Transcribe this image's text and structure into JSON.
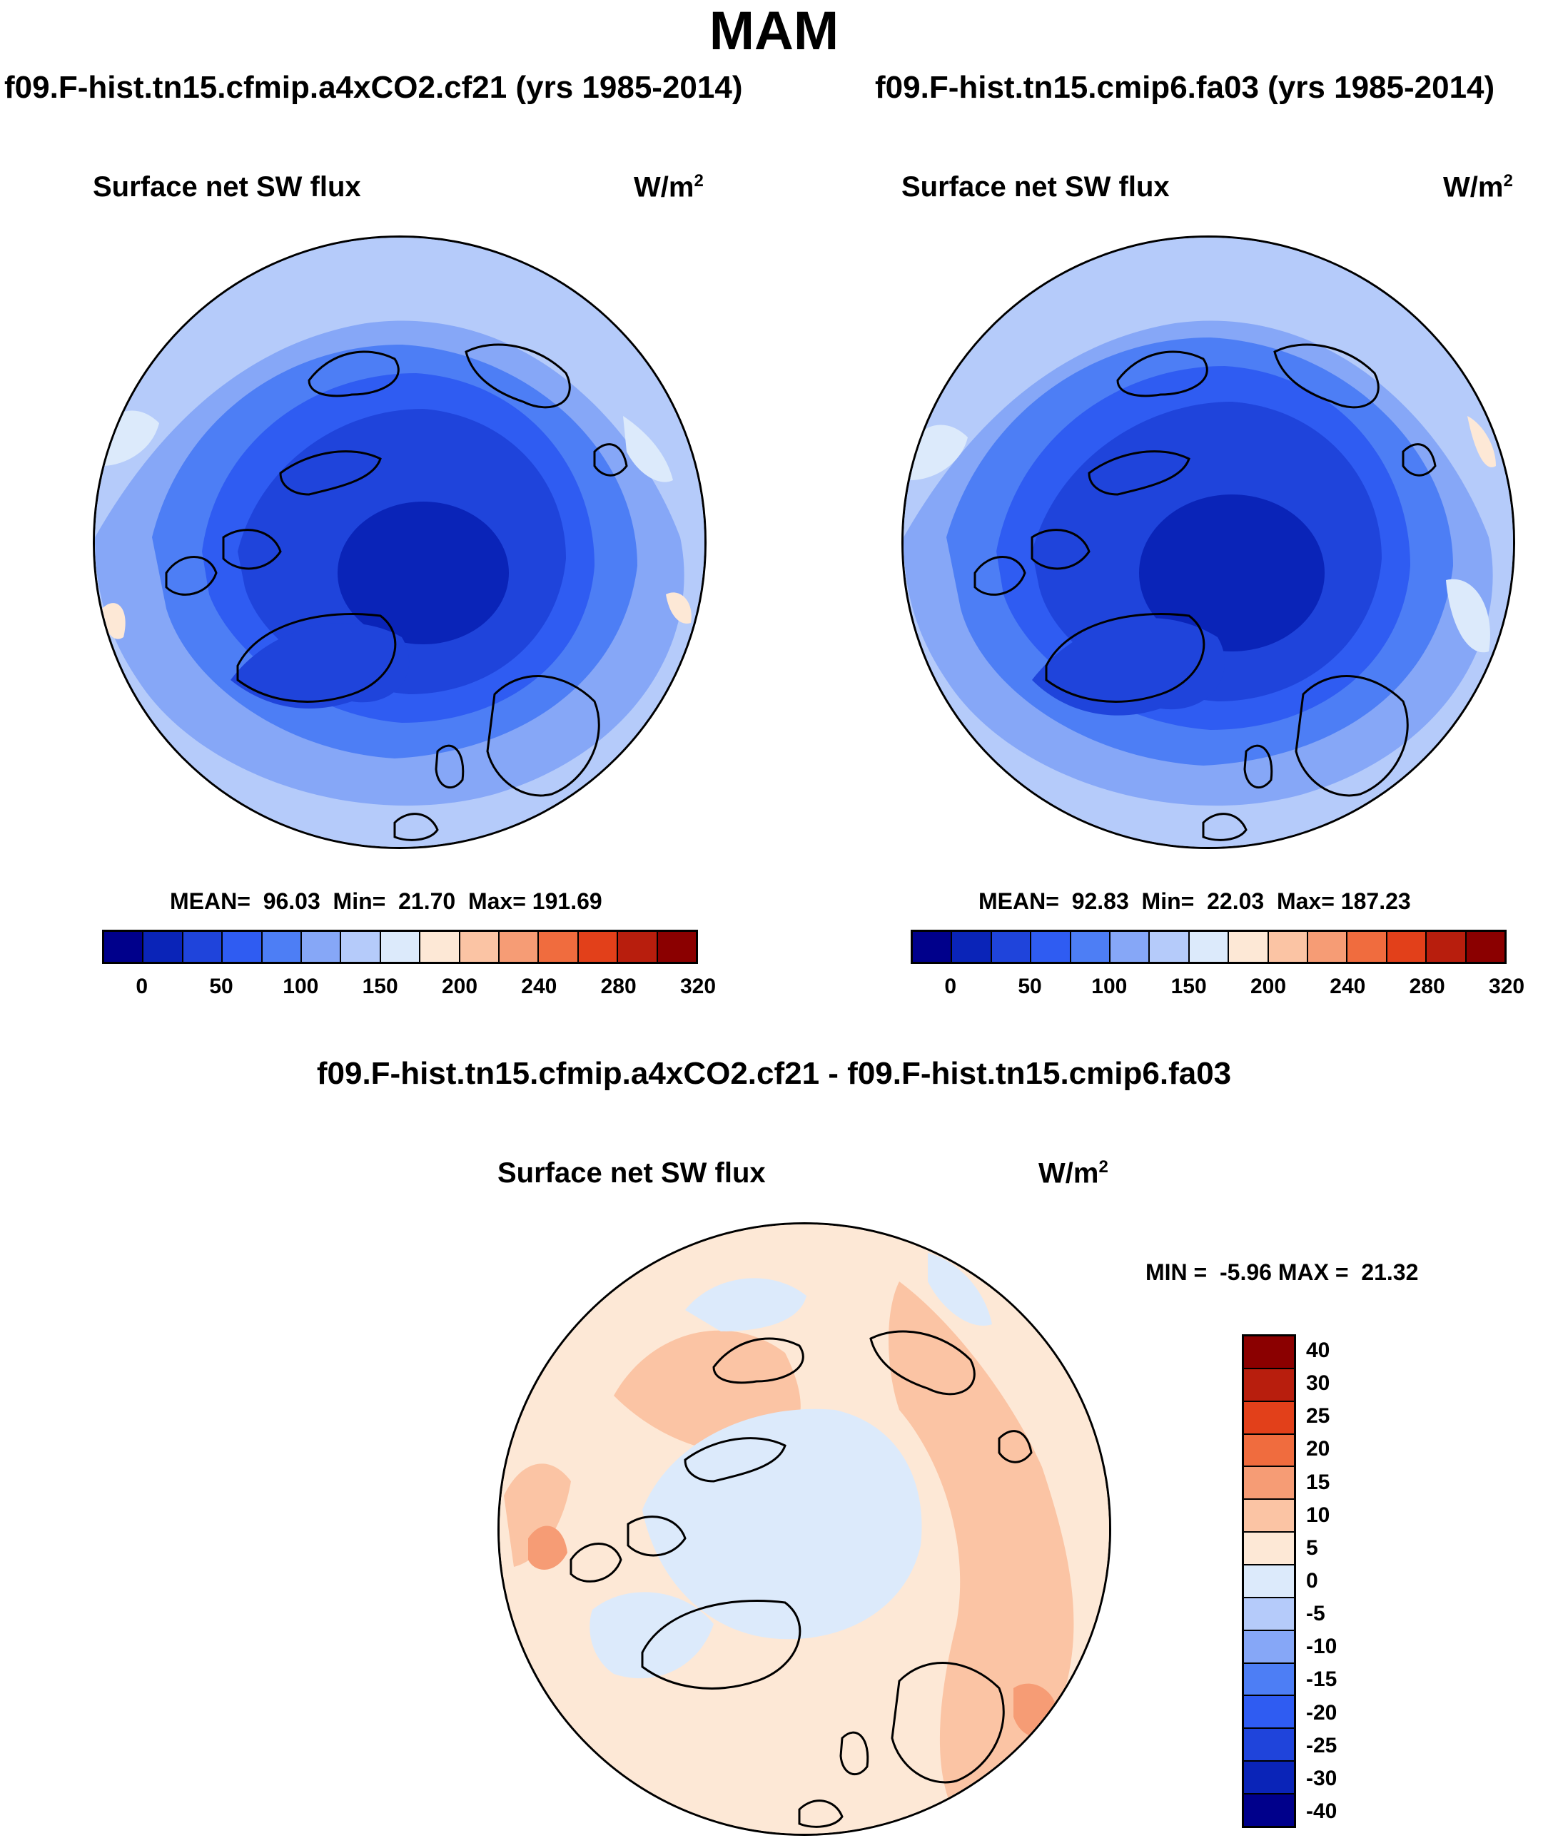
{
  "main_title": "MAM",
  "chart_data": [
    {
      "type": "heatmap",
      "projection": "north polar stereographic",
      "case_title": "f09.F-hist.tn15.cfmip.a4xCO2.cf21 (yrs 1985-2014)",
      "variable": "Surface net SW flux",
      "units": "W/m",
      "units_sup": "2",
      "stats_text": "MEAN=  96.03  Min=  21.70  Max= 191.69",
      "mean": 96.03,
      "min": 21.7,
      "max": 191.69,
      "colorbar": {
        "orientation": "horizontal",
        "tick_labels": [
          "0",
          "50",
          "100",
          "150",
          "200",
          "240",
          "280",
          "320"
        ],
        "colors": [
          "#00008b",
          "#0a24b8",
          "#1f44db",
          "#2f5cf2",
          "#4d7ef5",
          "#86a7f7",
          "#b5cbfa",
          "#dceafb",
          "#fde8d6",
          "#fbc4a4",
          "#f69c75",
          "#f06c3e",
          "#e2401a",
          "#b81e0d",
          "#8b0000"
        ]
      }
    },
    {
      "type": "heatmap",
      "projection": "north polar stereographic",
      "case_title": "f09.F-hist.tn15.cmip6.fa03 (yrs 1985-2014)",
      "variable": "Surface net SW flux",
      "units": "W/m",
      "units_sup": "2",
      "stats_text": "MEAN=  92.83  Min=  22.03  Max= 187.23",
      "mean": 92.83,
      "min": 22.03,
      "max": 187.23,
      "colorbar": {
        "orientation": "horizontal",
        "tick_labels": [
          "0",
          "50",
          "100",
          "150",
          "200",
          "240",
          "280",
          "320"
        ],
        "colors": [
          "#00008b",
          "#0a24b8",
          "#1f44db",
          "#2f5cf2",
          "#4d7ef5",
          "#86a7f7",
          "#b5cbfa",
          "#dceafb",
          "#fde8d6",
          "#fbc4a4",
          "#f69c75",
          "#f06c3e",
          "#e2401a",
          "#b81e0d",
          "#8b0000"
        ]
      }
    },
    {
      "type": "heatmap",
      "projection": "north polar stereographic",
      "case_title": "f09.F-hist.tn15.cfmip.a4xCO2.cf21 - f09.F-hist.tn15.cmip6.fa03",
      "variable": "Surface net SW flux",
      "units": "W/m",
      "units_sup": "2",
      "stats_text": "MIN =  -5.96 MAX =  21.32",
      "min": -5.96,
      "max": 21.32,
      "colorbar": {
        "orientation": "vertical",
        "tick_labels": [
          "40",
          "30",
          "25",
          "20",
          "15",
          "10",
          "5",
          "0",
          "-5",
          "-10",
          "-15",
          "-20",
          "-25",
          "-30",
          "-40"
        ],
        "colors": [
          "#8b0000",
          "#b81e0d",
          "#e2401a",
          "#f06c3e",
          "#f69c75",
          "#fbc4a4",
          "#fde8d6",
          "#dceafb",
          "#b5cbfa",
          "#86a7f7",
          "#4d7ef5",
          "#2f5cf2",
          "#1f44db",
          "#0a24b8",
          "#00008b"
        ]
      }
    }
  ]
}
